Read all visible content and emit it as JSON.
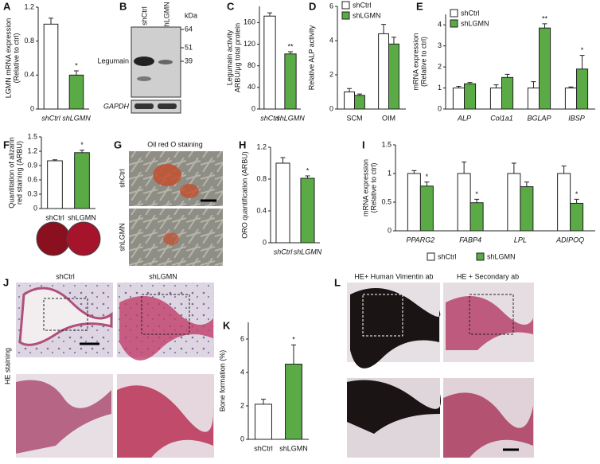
{
  "chart_data": [
    {
      "type": "bar",
      "panel": "A",
      "ylabel": [
        "LGMN mRNA expression",
        "(Relative to ctrl)"
      ],
      "categories": [
        "shCtrl",
        "shLGMN"
      ],
      "values": [
        1.0,
        0.4
      ],
      "errors": [
        0.07,
        0.05
      ],
      "colors": [
        "#ffffff",
        "#5aaa46"
      ],
      "significance": [
        null,
        "*"
      ],
      "ylim": [
        0,
        1.2
      ],
      "yticks": [
        0,
        0.4,
        0.8,
        1.2
      ],
      "italic_categories": true
    },
    {
      "type": "bar",
      "panel": "C",
      "ylabel": [
        "Legumain activity",
        "ARBU/µg total protein"
      ],
      "categories": [
        "shCtrl",
        "shLGMN"
      ],
      "values": [
        172,
        102
      ],
      "errors": [
        6,
        4
      ],
      "colors": [
        "#ffffff",
        "#5aaa46"
      ],
      "significance": [
        null,
        "**"
      ],
      "ylim": [
        0,
        190
      ],
      "yticks": [
        0,
        40,
        80,
        120,
        160
      ],
      "italic_categories": true
    },
    {
      "type": "bar",
      "panel": "D",
      "ylabel": [
        "Relative ALP activity"
      ],
      "categories": [
        "SCM",
        "OIM"
      ],
      "series": [
        {
          "name": "shCtrl",
          "color": "#ffffff",
          "values": [
            1.0,
            4.4
          ],
          "errors": [
            0.2,
            0.55
          ]
        },
        {
          "name": "shLGMN",
          "color": "#5aaa46",
          "values": [
            0.8,
            3.8
          ],
          "errors": [
            0.08,
            0.4
          ]
        }
      ],
      "ylim": [
        0,
        6
      ],
      "yticks": [
        0,
        2,
        4,
        6
      ],
      "legend": "top-left"
    },
    {
      "type": "bar",
      "panel": "E",
      "ylabel": [
        "mRNA expression",
        "(Relative to ctrl)"
      ],
      "categories": [
        "ALP",
        "Col1a1",
        "BGLAP",
        "IBSP"
      ],
      "series": [
        {
          "name": "shCtrl",
          "color": "#ffffff",
          "values": [
            1,
            1,
            1,
            1
          ],
          "errors": [
            0.08,
            0.15,
            0.3,
            0.05
          ]
        },
        {
          "name": "shLGMN",
          "color": "#5aaa46",
          "values": [
            1.2,
            1.5,
            3.85,
            1.9
          ],
          "errors": [
            0.06,
            0.15,
            0.2,
            0.65
          ],
          "significance": [
            null,
            null,
            "**",
            "*"
          ]
        }
      ],
      "ylim": [
        0,
        4.5
      ],
      "yticks": [
        0,
        1,
        2,
        3,
        4
      ],
      "legend": "top-left",
      "italic_categories": true
    },
    {
      "type": "bar",
      "panel": "F",
      "ylabel": [
        "Quantitation of alizarin",
        "red staining (ARBU)"
      ],
      "categories": [
        "shCtrl",
        "shLGMN"
      ],
      "values": [
        1.0,
        1.17
      ],
      "errors": [
        0.02,
        0.05
      ],
      "colors": [
        "#ffffff",
        "#5aaa46"
      ],
      "significance": [
        null,
        "*"
      ],
      "ylim": [
        0,
        1.5
      ],
      "yticks": [
        0,
        0.3,
        0.6,
        0.9,
        1.2,
        1.5
      ]
    },
    {
      "type": "bar",
      "panel": "H",
      "ylabel": [
        "ORO quantification (ARBU)"
      ],
      "categories": [
        "shCtrl",
        "shLGMN"
      ],
      "values": [
        1.0,
        0.81
      ],
      "errors": [
        0.07,
        0.03
      ],
      "colors": [
        "#ffffff",
        "#5aaa46"
      ],
      "significance": [
        null,
        "*"
      ],
      "ylim": [
        0,
        1.2
      ],
      "yticks": [
        0,
        0.4,
        0.8,
        1.2
      ],
      "italic_categories": true
    },
    {
      "type": "bar",
      "panel": "I",
      "ylabel": [
        "mRNA expression",
        "(Relative to ctrl)"
      ],
      "categories": [
        "PPARG2",
        "FABP4",
        "LPL",
        "ADIPOQ"
      ],
      "series": [
        {
          "name": "shCtrl",
          "color": "#ffffff",
          "values": [
            1,
            1,
            1,
            1
          ],
          "errors": [
            0.05,
            0.2,
            0.18,
            0.13
          ]
        },
        {
          "name": "shLGMN",
          "color": "#5aaa46",
          "values": [
            0.78,
            0.49,
            0.77,
            0.48
          ],
          "errors": [
            0.07,
            0.06,
            0.08,
            0.07
          ],
          "significance": [
            "*",
            "*",
            null,
            "*"
          ]
        }
      ],
      "ylim": [
        0,
        1.5
      ],
      "yticks": [
        0,
        0.5,
        1,
        1.5
      ],
      "legend": "bottom",
      "italic_categories": true
    },
    {
      "type": "bar",
      "panel": "K",
      "ylabel": [
        "Bone formation (%)"
      ],
      "categories": [
        "shCtrl",
        "shLGMN"
      ],
      "values": [
        2.1,
        4.5
      ],
      "errors": [
        0.3,
        1.15
      ],
      "colors": [
        "#ffffff",
        "#5aaa46"
      ],
      "significance": [
        null,
        "*"
      ],
      "ylim": [
        0,
        7
      ],
      "yticks": [
        0,
        2,
        4,
        6
      ]
    }
  ],
  "blot": {
    "panel": "B",
    "lanes": [
      "shCtrl",
      "shLGMN"
    ],
    "unit": "kDa",
    "markers": [
      "64",
      "51",
      "39"
    ],
    "bands": [
      "Legumain",
      "GAPDH"
    ]
  },
  "oil_red": {
    "panel": "G",
    "title": "Oil red O staining",
    "rows": [
      "shCtrl",
      "shLGMN"
    ]
  },
  "he": {
    "panel": "J",
    "columns": [
      "shCtrl",
      "shLGMN"
    ],
    "side": "HE staining"
  },
  "vimentin": {
    "panel": "L",
    "columns": [
      "HE+ Human Vimentin ab",
      "HE + Secondary ab"
    ]
  }
}
